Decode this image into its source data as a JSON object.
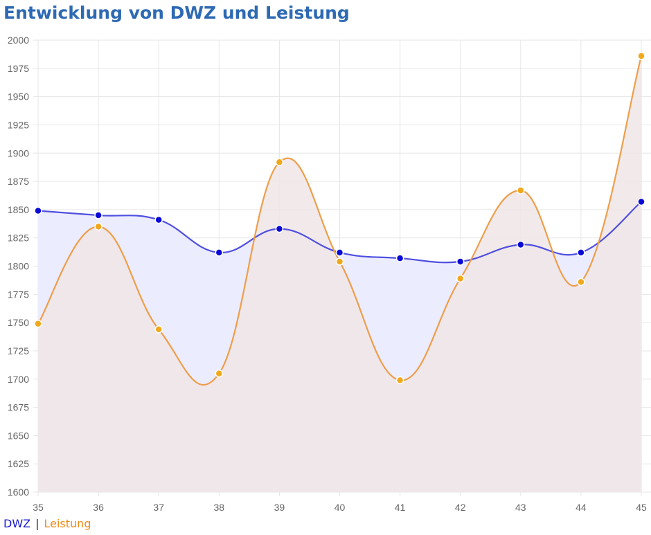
{
  "title": "Entwicklung von DWZ und Leistung",
  "legend": {
    "dwz_label": "DWZ",
    "separator": "|",
    "leistung_label": "Leistung"
  },
  "colors": {
    "title": "#2e6ab3",
    "dwz_line": "#4f4fe0",
    "dwz_point": "#0a0ad6",
    "dwz_fill": "#ececff",
    "leistung_line": "#ee9e4a",
    "leistung_point": "#f2a81b",
    "leistung_fill": "#f0e6e6",
    "legend_dwz": "#1a1acc",
    "legend_leistung": "#f08c1c"
  },
  "chart_data": {
    "type": "line",
    "title": "Entwicklung von DWZ und Leistung",
    "x": [
      35,
      36,
      37,
      38,
      39,
      40,
      41,
      42,
      43,
      44,
      45
    ],
    "xlabel": "",
    "ylabel": "",
    "ylim": [
      1600,
      2000
    ],
    "yticks": [
      1600,
      1625,
      1650,
      1675,
      1700,
      1725,
      1750,
      1775,
      1800,
      1825,
      1850,
      1875,
      1900,
      1925,
      1950,
      1975,
      2000
    ],
    "grid": true,
    "smooth": true,
    "filled": true,
    "legend_position": "bottom-left",
    "series": [
      {
        "name": "DWZ",
        "values": [
          1849,
          1845,
          1841,
          1812,
          1833,
          1812,
          1807,
          1804,
          1819,
          1812,
          1857
        ]
      },
      {
        "name": "Leistung",
        "values": [
          1749,
          1835,
          1744,
          1705,
          1892,
          1804,
          1699,
          1789,
          1867,
          1786,
          1986
        ]
      }
    ]
  }
}
